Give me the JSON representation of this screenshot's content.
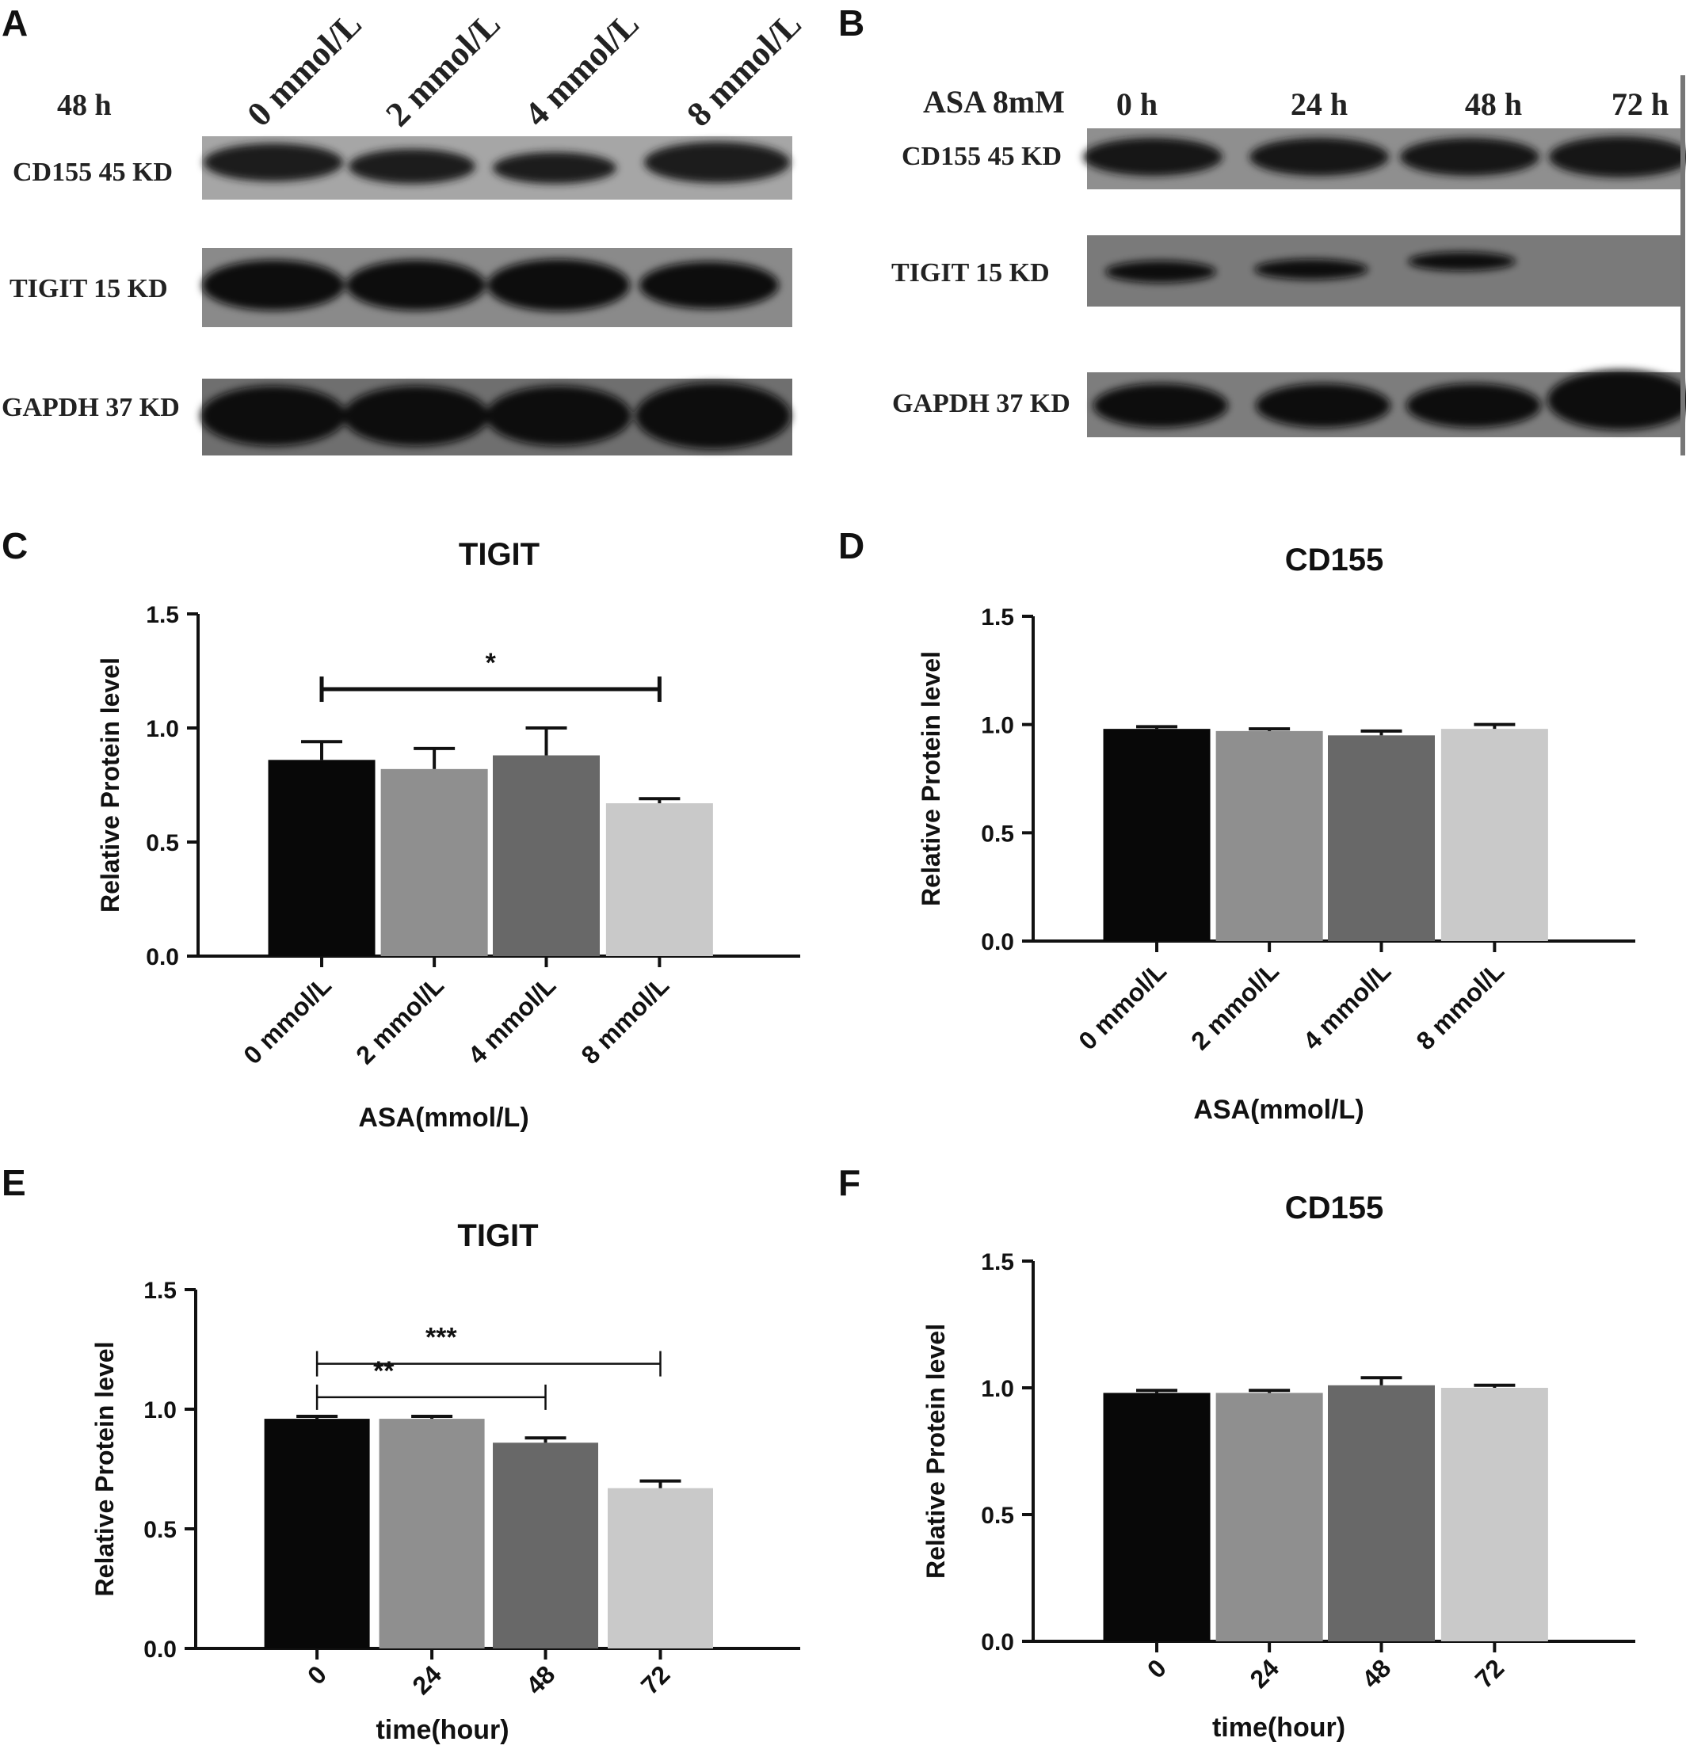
{
  "panels": {
    "A": {
      "letter": "A",
      "time_label": "48 h",
      "lanes": [
        "0 mmol/L",
        "2 mmol/L",
        "4 mmol/L",
        "8 mmol/L"
      ],
      "rows": [
        "CD155 45  KD",
        "TIGIT  15  KD",
        "GAPDH  37  KD"
      ]
    },
    "B": {
      "letter": "B",
      "condition_label": "ASA  8mM",
      "lanes": [
        "0  h",
        "24  h",
        "48  h",
        "72  h"
      ],
      "rows": [
        "CD155 45  KD",
        "TIGIT  15  KD",
        "GAPDH 37  KD"
      ]
    },
    "C": {
      "letter": "C"
    },
    "D": {
      "letter": "D"
    },
    "E": {
      "letter": "E"
    },
    "F": {
      "letter": "F"
    }
  },
  "colors": {
    "bar_fills": [
      "#080808",
      "#8f8f8f",
      "#686868",
      "#c9c9c9"
    ],
    "axis": "#111111"
  },
  "chart_data": [
    {
      "panel": "C",
      "type": "bar",
      "title": "TIGIT",
      "xlabel": "ASA(mmol/L)",
      "ylabel": "Relative Protein level",
      "categories": [
        "0 mmol/L",
        "2 mmol/L",
        "4 mmol/L",
        "8 mmol/L"
      ],
      "values": [
        0.86,
        0.82,
        0.88,
        0.67
      ],
      "errors": [
        0.08,
        0.09,
        0.12,
        0.02
      ],
      "ylim": [
        0,
        1.5
      ],
      "yticks": [
        "0.0",
        "0.5",
        "1.0",
        "1.5"
      ],
      "significance": [
        {
          "from": 0,
          "to": 3,
          "label": "*",
          "y": 1.17
        }
      ],
      "grid": false
    },
    {
      "panel": "D",
      "type": "bar",
      "title": "CD155",
      "xlabel": "ASA(mmol/L)",
      "ylabel": "Relative Protein level",
      "categories": [
        "0 mmol/L",
        "2 mmol/L",
        "4 mmol/L",
        "8 mmol/L"
      ],
      "values": [
        0.98,
        0.97,
        0.95,
        0.98
      ],
      "errors": [
        0.01,
        0.01,
        0.02,
        0.02
      ],
      "ylim": [
        0,
        1.5
      ],
      "yticks": [
        "0.0",
        "0.5",
        "1.0",
        "1.5"
      ],
      "significance": [],
      "grid": false
    },
    {
      "panel": "E",
      "type": "bar",
      "title": "TIGIT",
      "xlabel": "time(hour)",
      "ylabel": "Relative Protein level",
      "categories": [
        "0",
        "24",
        "48",
        "72"
      ],
      "values": [
        0.96,
        0.96,
        0.86,
        0.67
      ],
      "errors": [
        0.01,
        0.01,
        0.02,
        0.03
      ],
      "ylim": [
        0,
        1.5
      ],
      "yticks": [
        "0.0",
        "0.5",
        "1.0",
        "1.5"
      ],
      "significance": [
        {
          "from": 0,
          "to": 2,
          "label": "**",
          "y": 1.05
        },
        {
          "from": 0,
          "to": 3,
          "label": "***",
          "y": 1.19
        }
      ],
      "grid": false
    },
    {
      "panel": "F",
      "type": "bar",
      "title": "CD155",
      "xlabel": "time(hour)",
      "ylabel": "Relative Protein level",
      "categories": [
        "0",
        "24",
        "48",
        "72"
      ],
      "values": [
        0.98,
        0.98,
        1.01,
        1.0
      ],
      "errors": [
        0.01,
        0.01,
        0.03,
        0.01
      ],
      "ylim": [
        0,
        1.5
      ],
      "yticks": [
        "0.0",
        "0.5",
        "1.0",
        "1.5"
      ],
      "significance": [],
      "grid": false
    }
  ]
}
